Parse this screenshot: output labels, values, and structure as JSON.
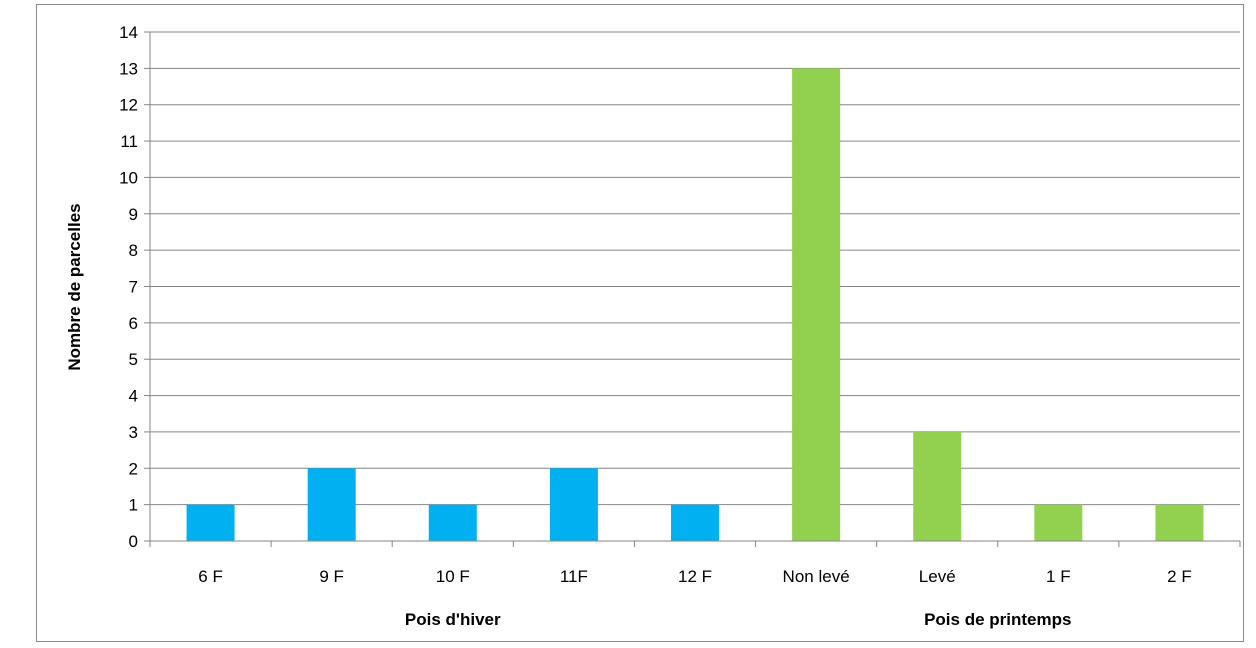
{
  "chart_data": {
    "type": "bar",
    "title": "",
    "xlabel": "",
    "ylabel": "Nombre de parcelles",
    "ylim": [
      0,
      14
    ],
    "yticks": [
      0,
      1,
      2,
      3,
      4,
      5,
      6,
      7,
      8,
      9,
      10,
      11,
      12,
      13,
      14
    ],
    "grid": true,
    "legend": "none",
    "categories": [
      "6 F",
      "9 F",
      "10 F",
      "11F",
      "12 F",
      "Non levé",
      "Levé",
      "1 F",
      "2 F"
    ],
    "values": [
      1,
      2,
      1,
      2,
      1,
      13,
      3,
      1,
      1
    ],
    "groups": [
      {
        "label": "Pois d'hiver",
        "categories": [
          "6 F",
          "9 F",
          "10 F",
          "11F",
          "12 F"
        ],
        "color": "#00b0f0"
      },
      {
        "label": "Pois de printemps",
        "categories": [
          "Non levé",
          "Levé",
          "1 F",
          "2 F"
        ],
        "color": "#92d050"
      }
    ]
  }
}
